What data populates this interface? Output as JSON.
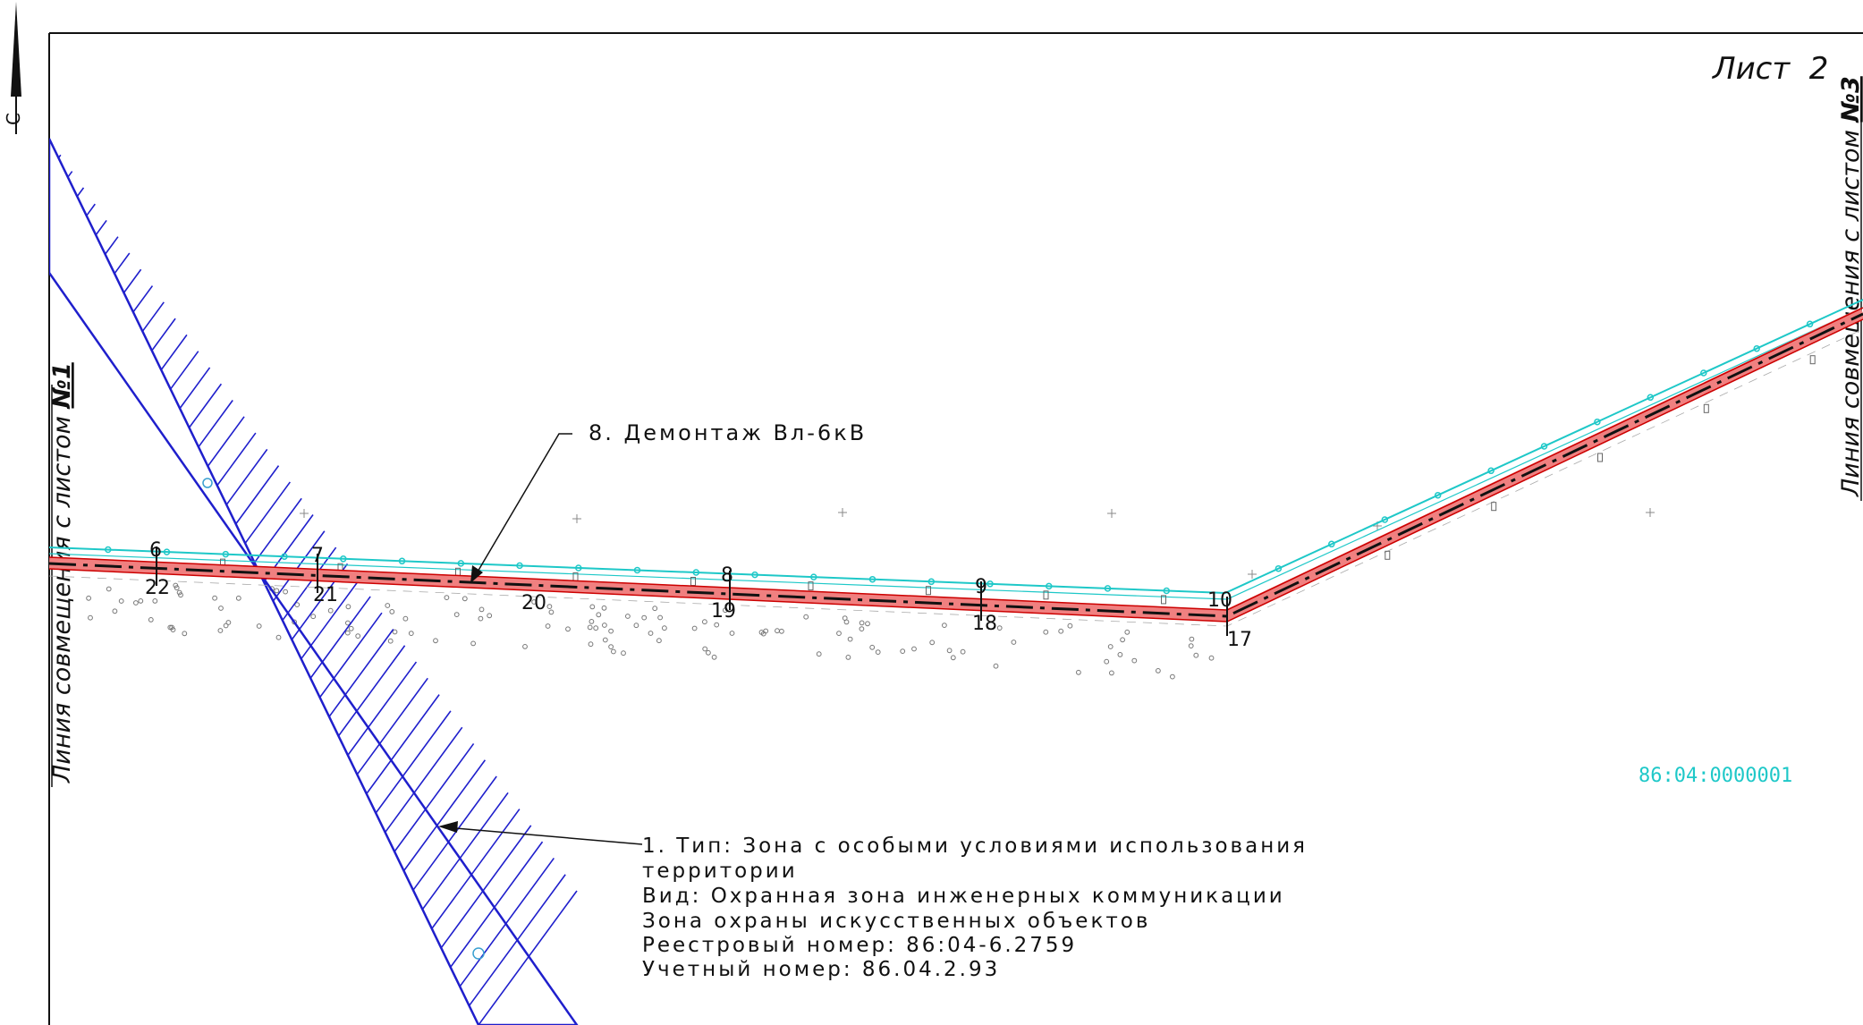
{
  "sheet": {
    "label": "Лист  2"
  },
  "match_lines": {
    "left": {
      "text": "Линия совмещения с листом ",
      "number": "№1"
    },
    "right": {
      "text": "Линия совмещения с листом ",
      "number": "№3"
    }
  },
  "north_arrow": {
    "letter": "С"
  },
  "callouts": {
    "demolition": "8. Демонтаж Вл-6кВ",
    "zone": {
      "line1": "1. Тип: Зона с особыми условиями использования",
      "line2": "территории",
      "line3": "Вид: Охранная зона инженерных коммуникации",
      "line4": "Зона охраны искусственных объектов",
      "line5": "Реестровый номер: 86:04-6.2759",
      "line6": "Учетный номер: 86.04.2.93"
    }
  },
  "cadastral": {
    "number": "86:04:0000001"
  },
  "points": [
    {
      "label": "6"
    },
    {
      "label": "7"
    },
    {
      "label": "8"
    },
    {
      "label": "9"
    },
    {
      "label": "10"
    },
    {
      "label": "17"
    },
    {
      "label": "18"
    },
    {
      "label": "19"
    },
    {
      "label": "20"
    },
    {
      "label": "21"
    },
    {
      "label": "22"
    }
  ],
  "colors": {
    "frame": "#111111",
    "corridor_fill": "#f08080",
    "corridor_edge": "#cc0000",
    "zone_hatch": "#1f1fcc",
    "utility_line": "#1ec8c8",
    "cadastral_text": "#1ec8c8"
  }
}
